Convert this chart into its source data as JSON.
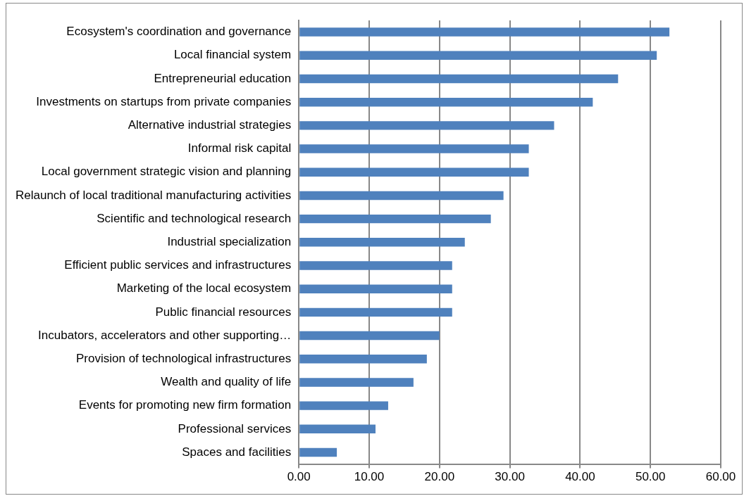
{
  "chart_data": {
    "type": "bar",
    "orientation": "horizontal",
    "categories": [
      "Ecosystem's coordination and governance",
      "Local financial system",
      "Entrepreneurial education",
      "Investments on startups from private companies",
      "Alternative industrial strategies",
      "Informal risk capital",
      "Local government strategic vision and planning",
      "Relaunch of local traditional manufacturing activities",
      "Scientific and technological research",
      "Industrial specialization",
      "Efficient public services and infrastructures",
      "Marketing of the local ecosystem",
      "Public financial resources",
      "Incubators, accelerators and other supporting…",
      "Provision of technological infrastructures",
      "Wealth and quality of life",
      "Events for promoting new firm formation",
      "Professional services",
      "Spaces and facilities"
    ],
    "values": [
      52.7,
      50.9,
      45.4,
      41.8,
      36.3,
      32.7,
      32.7,
      29.1,
      27.3,
      23.6,
      21.8,
      21.8,
      21.8,
      20.0,
      18.2,
      16.3,
      12.7,
      10.9,
      5.4
    ],
    "color": "#4f81bd",
    "xlim": [
      0,
      60
    ],
    "xticks": [
      {
        "value": 0,
        "label": "0.00"
      },
      {
        "value": 10,
        "label": "10.00"
      },
      {
        "value": 20,
        "label": "20.00"
      },
      {
        "value": 30,
        "label": "30.00"
      },
      {
        "value": 40,
        "label": "40.00"
      },
      {
        "value": 50,
        "label": "50.00"
      },
      {
        "value": 60,
        "label": "60.00"
      }
    ],
    "grid": "x",
    "legend": false
  }
}
